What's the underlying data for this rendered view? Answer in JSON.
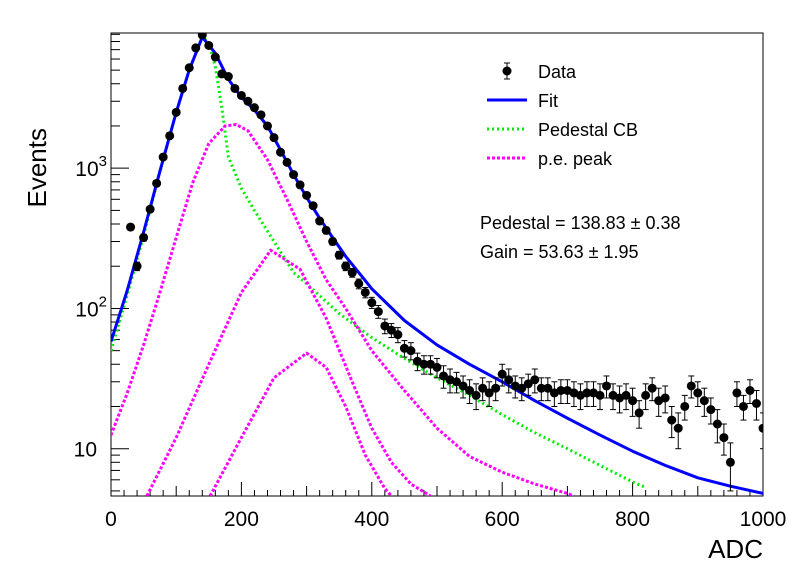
{
  "chart_data": {
    "type": "scatter",
    "xlabel": "ADC",
    "ylabel": "Events",
    "xlim": [
      0,
      1000
    ],
    "ylim": [
      4.6,
      9200
    ],
    "yscale": "log",
    "grid": false,
    "legend_position": "top-right",
    "x_ticks": [
      0,
      200,
      400,
      600,
      800,
      1000
    ],
    "x_tick_labels": [
      "0",
      "200",
      "400",
      "600",
      "800",
      "1000"
    ],
    "y_ticks": [
      10,
      100,
      1000
    ],
    "y_tick_labels": [
      "10",
      "10",
      "10"
    ],
    "y_tick_exponents": [
      "",
      "2",
      "3"
    ],
    "legend": [
      {
        "label": "Data",
        "kind": "marker",
        "color": "#000000"
      },
      {
        "label": "Fit",
        "kind": "solid",
        "color": "#0000ff"
      },
      {
        "label": "Pedestal CB",
        "kind": "dotted",
        "color": "#00ee00"
      },
      {
        "label": "p.e. peak",
        "kind": "dashed",
        "color": "#ff00ff"
      }
    ],
    "annotations": [
      "Pedestal = 138.83 ± 0.38",
      "Gain = 53.63 ± 1.95"
    ],
    "fit_params": {
      "pedestal": 138.83,
      "pedestal_err": 0.38,
      "gain": 53.63,
      "gain_err": 1.95
    },
    "series": [
      {
        "name": "Data",
        "kind": "points",
        "color": "#000000",
        "x": [
          30,
          40,
          50,
          60,
          70,
          80,
          90,
          100,
          110,
          120,
          130,
          140,
          150,
          160,
          170,
          180,
          190,
          200,
          210,
          220,
          230,
          240,
          250,
          260,
          270,
          280,
          290,
          300,
          310,
          320,
          330,
          340,
          350,
          360,
          370,
          380,
          390,
          400,
          410,
          420,
          430,
          440,
          450,
          460,
          470,
          480,
          490,
          500,
          510,
          520,
          530,
          540,
          550,
          560,
          570,
          580,
          590,
          600,
          610,
          620,
          630,
          640,
          650,
          660,
          670,
          680,
          690,
          700,
          710,
          720,
          730,
          740,
          750,
          760,
          770,
          780,
          790,
          800,
          810,
          820,
          830,
          840,
          850,
          860,
          870,
          880,
          890,
          900,
          910,
          920,
          930,
          940,
          950,
          960,
          970,
          980,
          990,
          1000
        ],
        "y": [
          380,
          200,
          320,
          510,
          780,
          1200,
          1700,
          2500,
          3700,
          5200,
          7200,
          8900,
          7500,
          6200,
          4700,
          4500,
          3700,
          3300,
          3000,
          2700,
          2400,
          2000,
          1650,
          1300,
          1100,
          900,
          760,
          640,
          540,
          420,
          360,
          300,
          240,
          200,
          180,
          150,
          130,
          110,
          95,
          75,
          70,
          65,
          52,
          50,
          42,
          40,
          40,
          38,
          33,
          31,
          30,
          28,
          26,
          24,
          27,
          25,
          27,
          34,
          31,
          28,
          27,
          29,
          31,
          27,
          27,
          25,
          26,
          26,
          25,
          24,
          25,
          25,
          24,
          28,
          24,
          23,
          24,
          22,
          18,
          24,
          27,
          22,
          23,
          16,
          14,
          20,
          28,
          25,
          22,
          19,
          15,
          12,
          8,
          25,
          20,
          26,
          21,
          14
        ],
        "err": [
          19,
          14,
          18,
          23,
          28,
          35,
          41,
          50,
          61,
          72,
          85,
          94,
          87,
          79,
          69,
          67,
          61,
          57,
          55,
          52,
          49,
          45,
          41,
          36,
          33,
          30,
          28,
          25,
          23,
          20,
          19,
          17,
          15,
          14,
          13,
          12,
          11,
          10,
          10,
          9,
          8,
          8,
          7,
          7,
          6,
          6,
          6,
          6,
          6,
          6,
          5,
          5,
          5,
          5,
          5,
          5,
          5,
          6,
          6,
          5,
          5,
          5,
          6,
          5,
          5,
          5,
          5,
          5,
          5,
          5,
          5,
          5,
          5,
          5,
          5,
          5,
          5,
          5,
          4,
          5,
          5,
          5,
          5,
          4,
          4,
          4,
          5,
          5,
          5,
          4,
          4,
          3,
          3,
          5,
          4,
          5,
          5,
          4
        ]
      },
      {
        "name": "Fit",
        "kind": "line",
        "color": "#0000ff",
        "x": [
          0,
          25,
          50,
          75,
          100,
          120,
          140,
          160,
          180,
          200,
          220,
          240,
          260,
          280,
          300,
          320,
          340,
          360,
          380,
          400,
          450,
          500,
          550,
          600,
          650,
          700,
          750,
          800,
          850,
          900,
          950,
          1000
        ],
        "y": [
          58,
          135,
          350,
          950,
          2500,
          5000,
          8600,
          6600,
          4300,
          3200,
          2600,
          2000,
          1350,
          900,
          620,
          440,
          320,
          235,
          180,
          138,
          82,
          55,
          40,
          30,
          22,
          16.5,
          12.5,
          9.6,
          7.6,
          6.2,
          5.4,
          4.8
        ]
      },
      {
        "name": "Pedestal CB",
        "kind": "line",
        "color": "#00ee00",
        "x": [
          0,
          25,
          50,
          75,
          100,
          120,
          140,
          150,
          160,
          170,
          180,
          200,
          220,
          250,
          280,
          300,
          350,
          400,
          450,
          500,
          550,
          600,
          650,
          700,
          750,
          800,
          820
        ],
        "y": [
          50,
          125,
          330,
          950,
          2500,
          5000,
          8600,
          7900,
          5300,
          2700,
          1200,
          720,
          500,
          300,
          180,
          150,
          92,
          62,
          44,
          32,
          24,
          17.5,
          13,
          10,
          7.6,
          5.8,
          5.3
        ]
      },
      {
        "name": "p.e. peak 1",
        "kind": "line",
        "color": "#ff00ff",
        "x": [
          0,
          25,
          50,
          75,
          100,
          125,
          150,
          175,
          192,
          210,
          240,
          270,
          300,
          330,
          360,
          400,
          450,
          500,
          550,
          600,
          650,
          700,
          710
        ],
        "y": [
          12.5,
          25,
          55,
          130,
          320,
          780,
          1500,
          2000,
          2050,
          1850,
          1150,
          600,
          300,
          160,
          100,
          50,
          26,
          14,
          8.8,
          6.8,
          5.6,
          4.8,
          4.6
        ]
      },
      {
        "name": "p.e. peak 2",
        "kind": "line",
        "color": "#ff00ff",
        "x": [
          55,
          100,
          150,
          200,
          245,
          290,
          330,
          370,
          400,
          430,
          460,
          490
        ],
        "y": [
          4.6,
          12,
          40,
          130,
          260,
          190,
          85,
          30,
          14,
          8,
          5.6,
          4.6
        ]
      },
      {
        "name": "p.e. peak 3",
        "kind": "line",
        "color": "#ff00ff",
        "x": [
          152,
          200,
          250,
          300,
          330,
          360,
          390,
          420,
          430
        ],
        "y": [
          4.6,
          12,
          32,
          48,
          38,
          20,
          9,
          5.2,
          4.6
        ]
      }
    ]
  }
}
